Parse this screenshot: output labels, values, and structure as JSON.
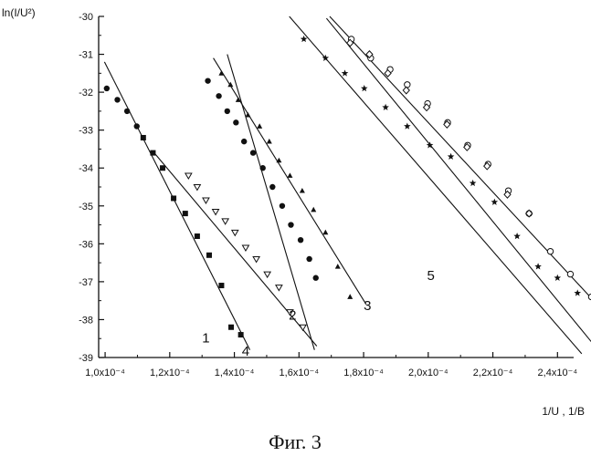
{
  "chart_data": {
    "type": "scatter",
    "title": "",
    "ylabel": "ln(I/U²)",
    "xlabel": "1/U , 1/B",
    "caption": "Фиг. 3",
    "xlim": [
      9.8e-05,
      0.000245
    ],
    "ylim": [
      -39,
      -30
    ],
    "x_ticks": [
      0.0001,
      0.00012,
      0.00014,
      0.00016,
      0.00018,
      0.0002,
      0.00022,
      0.00024
    ],
    "x_tick_labels": [
      "1,0x10⁻⁴",
      "1,2x10⁻⁴",
      "1,4x10⁻⁴",
      "1,6x10⁻⁴",
      "1,8x10⁻⁴",
      "2,0x10⁻⁴",
      "2,2x10⁻⁴",
      "2,4x10⁻⁴"
    ],
    "y_ticks": [
      -39,
      -38,
      -37,
      -36,
      -35,
      -34,
      -33,
      -32,
      -31,
      -30
    ],
    "y_tick_labels": [
      "-39",
      "-38",
      "-37",
      "-36",
      "-35",
      "-34",
      "-33",
      "-32",
      "-31",
      "-30"
    ],
    "grid": false,
    "series": [
      {
        "name": "1",
        "marker": "square",
        "points": [
          [
            0.0001118,
            -33.2
          ],
          [
            0.0001148,
            -33.6
          ],
          [
            0.0001178,
            -34.0
          ],
          [
            0.0001212,
            -34.8
          ],
          [
            0.0001248,
            -35.2
          ],
          [
            0.0001285,
            -35.8
          ],
          [
            0.0001322,
            -36.3
          ],
          [
            0.000136,
            -37.1
          ],
          [
            0.000139,
            -38.2
          ],
          [
            0.000142,
            -38.4
          ]
        ],
        "fit_line": [
          [
            9.98e-05,
            -31.2
          ],
          [
            0.0001448,
            -38.8
          ]
        ],
        "label_at": [
          0.0001312,
          -38.6
        ]
      },
      {
        "name": "2",
        "marker": "filled-circle",
        "points": [
          [
            0.0001005,
            -31.9
          ],
          [
            0.0001038,
            -32.2
          ],
          [
            0.0001068,
            -32.5
          ],
          [
            0.0001098,
            -32.9
          ],
          [
            0.0001318,
            -31.7
          ],
          [
            0.0001352,
            -32.1
          ],
          [
            0.0001378,
            -32.5
          ],
          [
            0.0001405,
            -32.8
          ],
          [
            0.000143,
            -33.3
          ],
          [
            0.0001458,
            -33.6
          ],
          [
            0.0001488,
            -34.0
          ],
          [
            0.0001518,
            -34.5
          ],
          [
            0.0001548,
            -35.0
          ],
          [
            0.0001575,
            -35.5
          ],
          [
            0.0001605,
            -35.9
          ],
          [
            0.0001632,
            -36.4
          ],
          [
            0.0001652,
            -36.9
          ]
        ],
        "fit_line": [
          [
            0.0001378,
            -31.0
          ],
          [
            0.0001648,
            -38.8
          ]
        ],
        "label_at": [
          0.000158,
          -38.0
        ]
      },
      {
        "name": "3",
        "marker": "filled-triangle",
        "points": [
          [
            0.000136,
            -31.5
          ],
          [
            0.0001388,
            -31.8
          ],
          [
            0.0001412,
            -32.2
          ],
          [
            0.0001442,
            -32.6
          ],
          [
            0.0001478,
            -32.9
          ],
          [
            0.0001508,
            -33.3
          ],
          [
            0.0001538,
            -33.8
          ],
          [
            0.0001572,
            -34.2
          ],
          [
            0.000161,
            -34.6
          ],
          [
            0.0001645,
            -35.1
          ],
          [
            0.0001682,
            -35.7
          ],
          [
            0.000172,
            -36.6
          ],
          [
            0.0001758,
            -37.4
          ]
        ],
        "fit_line": [
          [
            0.0001335,
            -31.1
          ],
          [
            0.0001808,
            -37.6
          ]
        ],
        "label_at": [
          0.0001812,
          -37.75
        ]
      },
      {
        "name": "4",
        "marker": "open-triangle",
        "points": [
          [
            0.0001258,
            -34.2
          ],
          [
            0.0001285,
            -34.5
          ],
          [
            0.0001312,
            -34.85
          ],
          [
            0.0001342,
            -35.15
          ],
          [
            0.0001372,
            -35.4
          ],
          [
            0.0001402,
            -35.7
          ],
          [
            0.0001435,
            -36.1
          ],
          [
            0.0001468,
            -36.4
          ],
          [
            0.0001502,
            -36.8
          ],
          [
            0.0001538,
            -37.15
          ],
          [
            0.0001572,
            -37.8
          ],
          [
            0.0001612,
            -38.2
          ]
        ],
        "fit_line": [
          [
            0.0001152,
            -33.6
          ],
          [
            0.0001655,
            -38.7
          ]
        ],
        "label_at": [
          0.0001435,
          -38.95
        ]
      },
      {
        "name": "5",
        "marker": "star",
        "points": [
          [
            0.0001615,
            -30.6
          ],
          [
            0.0001682,
            -31.1
          ],
          [
            0.0001742,
            -31.5
          ],
          [
            0.0001802,
            -31.9
          ],
          [
            0.0001868,
            -32.4
          ],
          [
            0.0001935,
            -32.9
          ],
          [
            0.0002005,
            -33.4
          ],
          [
            0.000207,
            -33.7
          ],
          [
            0.0002138,
            -34.4
          ],
          [
            0.0002205,
            -34.9
          ],
          [
            0.0002275,
            -35.8
          ],
          [
            0.000234,
            -36.6
          ],
          [
            0.00024,
            -36.9
          ],
          [
            0.0002462,
            -37.3
          ]
        ],
        "fit_line": [
          [
            0.000157,
            -30.0
          ],
          [
            0.0002475,
            -38.9
          ]
        ],
        "label_at": [
          0.0002008,
          -36.95
        ]
      },
      {
        "name": "",
        "marker": "open-circle",
        "points": [
          [
            0.0001762,
            -30.6
          ],
          [
            0.0001822,
            -31.1
          ],
          [
            0.0001882,
            -31.4
          ],
          [
            0.0001935,
            -31.8
          ],
          [
            0.0001998,
            -32.3
          ],
          [
            0.000206,
            -32.8
          ],
          [
            0.0002122,
            -33.4
          ],
          [
            0.0002185,
            -33.9
          ],
          [
            0.0002248,
            -34.6
          ],
          [
            0.0002312,
            -35.2
          ],
          [
            0.0002378,
            -36.2
          ],
          [
            0.000244,
            -36.8
          ],
          [
            0.0002505,
            -37.4
          ]
        ],
        "fit_line": [
          [
            0.0001695,
            -30.0
          ],
          [
            0.0002512,
            -37.5
          ]
        ]
      },
      {
        "name": "",
        "marker": "diamond",
        "points": [
          [
            0.0001758,
            -30.7
          ],
          [
            0.0001818,
            -31.0
          ],
          [
            0.0001875,
            -31.5
          ],
          [
            0.0001932,
            -31.95
          ],
          [
            0.0001995,
            -32.4
          ],
          [
            0.0002058,
            -32.85
          ],
          [
            0.000212,
            -33.45
          ],
          [
            0.0002182,
            -33.95
          ],
          [
            0.0002245,
            -34.7
          ],
          [
            0.0002312,
            -35.2
          ]
        ],
        "fit_line": [
          [
            0.0001685,
            -30.05
          ],
          [
            0.0002535,
            -38.9
          ]
        ]
      }
    ]
  }
}
